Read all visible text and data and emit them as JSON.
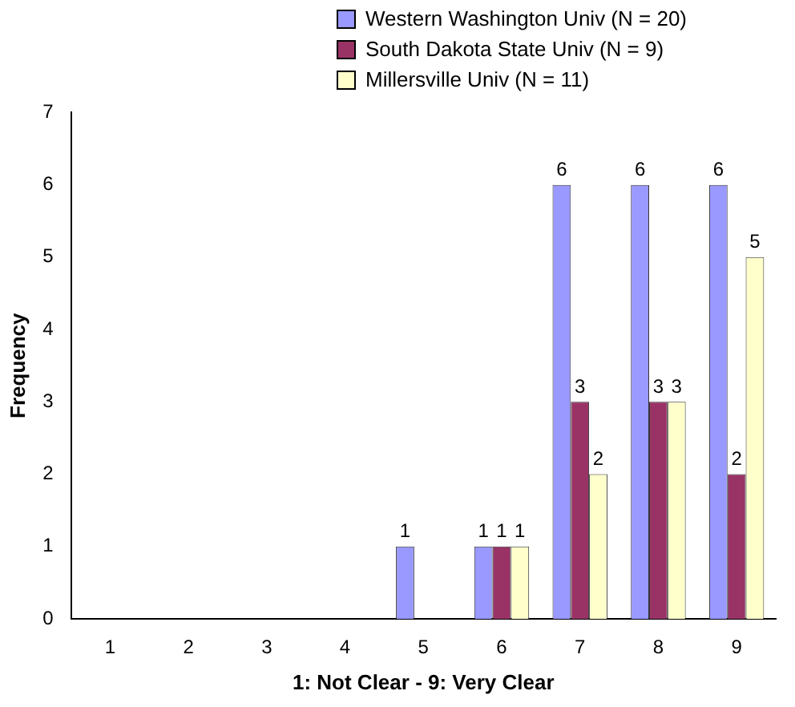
{
  "chart_data": {
    "type": "bar",
    "xlabel": "1: Not Clear - 9: Very Clear",
    "ylabel": "Frequency",
    "categories": [
      "1",
      "2",
      "3",
      "4",
      "5",
      "6",
      "7",
      "8",
      "9"
    ],
    "ylim": [
      0,
      7
    ],
    "yticks": [
      0,
      1,
      2,
      3,
      4,
      5,
      6,
      7
    ],
    "grid": false,
    "legend": "top",
    "series": [
      {
        "name": "Western Washington Univ (N = 20)",
        "color": "#9999ff",
        "values": [
          0,
          0,
          0,
          0,
          1,
          1,
          6,
          6,
          6
        ],
        "value_labels": [
          null,
          null,
          null,
          null,
          "1",
          "1",
          "6",
          "6",
          "6"
        ]
      },
      {
        "name": "South Dakota State Univ (N = 9)",
        "color": "#993366",
        "values": [
          0,
          0,
          0,
          0,
          0,
          1,
          3,
          3,
          2
        ],
        "value_labels": [
          null,
          null,
          null,
          null,
          null,
          "1",
          "3",
          "3",
          "2"
        ]
      },
      {
        "name": "Millersville Univ (N = 11)",
        "color": "#ffffcc",
        "values": [
          0,
          0,
          0,
          0,
          0,
          1,
          2,
          3,
          5
        ],
        "value_labels": [
          null,
          null,
          null,
          null,
          null,
          "1",
          "2",
          "3",
          "5"
        ]
      }
    ]
  }
}
